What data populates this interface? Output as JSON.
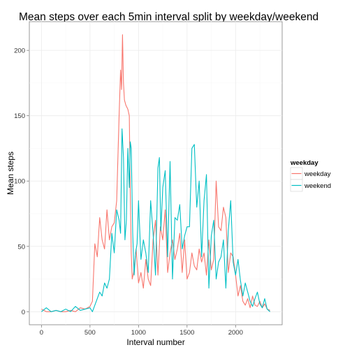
{
  "chart_data": {
    "type": "line",
    "title": "Mean steps over each 5min interval split by weekday/weekend",
    "xlabel": "Interval number",
    "ylabel": "Mean steps",
    "xlim": [
      -125,
      2480
    ],
    "ylim": [
      -10,
      222
    ],
    "x_ticks": [
      0,
      500,
      1000,
      1500,
      2000
    ],
    "y_ticks": [
      0,
      50,
      100,
      150,
      200
    ],
    "grid": true,
    "legend_position": "right",
    "legend_title": "weekday",
    "series": [
      {
        "name": "weekday",
        "color": "#F8766D",
        "x": [
          0,
          50,
          100,
          150,
          200,
          250,
          300,
          350,
          400,
          450,
          500,
          525,
          550,
          575,
          600,
          625,
          650,
          675,
          700,
          725,
          750,
          775,
          800,
          815,
          825,
          835,
          845,
          855,
          870,
          890,
          905,
          915,
          925,
          935,
          950,
          975,
          1000,
          1025,
          1050,
          1075,
          1100,
          1125,
          1150,
          1175,
          1200,
          1225,
          1250,
          1275,
          1300,
          1325,
          1350,
          1375,
          1400,
          1425,
          1450,
          1475,
          1500,
          1525,
          1550,
          1575,
          1600,
          1625,
          1650,
          1675,
          1700,
          1725,
          1750,
          1775,
          1800,
          1825,
          1850,
          1875,
          1900,
          1925,
          1950,
          1975,
          2000,
          2025,
          2050,
          2075,
          2100,
          2125,
          2150,
          2175,
          2200,
          2225,
          2250,
          2275,
          2300,
          2325,
          2355
        ],
        "values": [
          2,
          0,
          0,
          1,
          0,
          0,
          1,
          0,
          3,
          2,
          4,
          8,
          52,
          42,
          72,
          55,
          48,
          78,
          55,
          65,
          68,
          85,
          150,
          185,
          170,
          212,
          175,
          162,
          158,
          155,
          150,
          90,
          45,
          25,
          30,
          48,
          22,
          30,
          18,
          40,
          25,
          20,
          55,
          70,
          28,
          65,
          55,
          78,
          30,
          45,
          55,
          40,
          48,
          60,
          30,
          55,
          25,
          30,
          45,
          35,
          32,
          48,
          38,
          45,
          28,
          55,
          32,
          40,
          100,
          65,
          62,
          80,
          72,
          30,
          45,
          42,
          28,
          12,
          20,
          8,
          5,
          10,
          3,
          12,
          5,
          4,
          8,
          3,
          6,
          2,
          1
        ]
      },
      {
        "name": "weekend",
        "color": "#00BFC4",
        "x": [
          0,
          50,
          100,
          150,
          200,
          250,
          300,
          350,
          400,
          450,
          500,
          525,
          550,
          575,
          600,
          625,
          650,
          675,
          700,
          725,
          750,
          775,
          800,
          815,
          830,
          845,
          860,
          875,
          890,
          905,
          915,
          925,
          940,
          955,
          970,
          985,
          1000,
          1025,
          1050,
          1075,
          1100,
          1125,
          1150,
          1175,
          1200,
          1215,
          1230,
          1250,
          1275,
          1300,
          1325,
          1350,
          1375,
          1400,
          1425,
          1450,
          1475,
          1500,
          1525,
          1550,
          1575,
          1600,
          1625,
          1650,
          1675,
          1700,
          1725,
          1750,
          1775,
          1800,
          1825,
          1850,
          1875,
          1900,
          1925,
          1950,
          1975,
          2000,
          2025,
          2050,
          2075,
          2100,
          2125,
          2150,
          2175,
          2200,
          2225,
          2250,
          2275,
          2300,
          2325,
          2355
        ],
        "values": [
          0,
          3,
          0,
          1,
          0,
          2,
          0,
          4,
          1,
          2,
          3,
          0,
          5,
          10,
          15,
          12,
          22,
          18,
          25,
          60,
          45,
          78,
          70,
          60,
          140,
          118,
          55,
          70,
          125,
          95,
          130,
          125,
          60,
          28,
          45,
          52,
          85,
          40,
          55,
          45,
          30,
          85,
          60,
          28,
          110,
          118,
          62,
          95,
          108,
          42,
          115,
          25,
          72,
          70,
          82,
          48,
          58,
          65,
          65,
          125,
          128,
          80,
          100,
          42,
          85,
          105,
          18,
          58,
          70,
          25,
          38,
          42,
          55,
          18,
          62,
          85,
          38,
          28,
          40,
          24,
          12,
          22,
          15,
          8,
          4,
          10,
          15,
          6,
          3,
          10,
          2,
          0
        ]
      }
    ]
  }
}
